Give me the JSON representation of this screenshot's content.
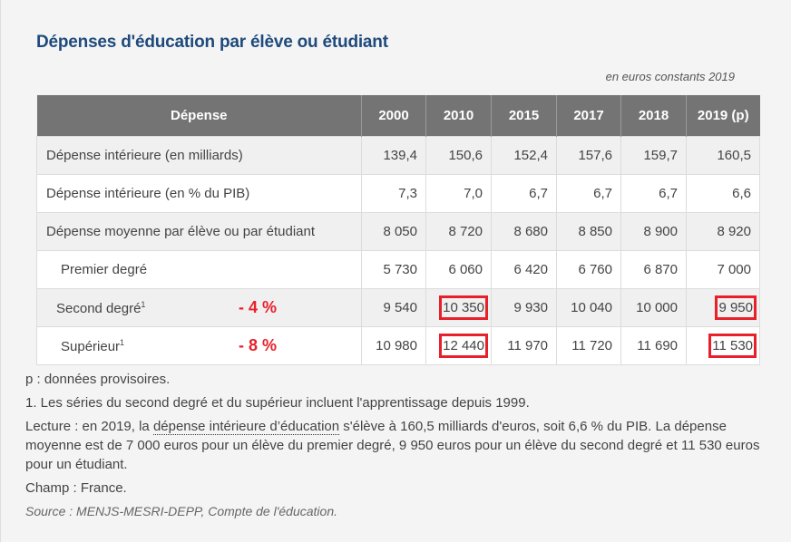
{
  "title": "Dépenses d'éducation par élève ou étudiant",
  "units": "en euros constants 2019",
  "table": {
    "headers": [
      "Dépense",
      "2000",
      "2010",
      "2015",
      "2017",
      "2018",
      "2019 (p)"
    ],
    "rows": [
      {
        "label": "Dépense intérieure (en milliards)",
        "values": [
          "139,4",
          "150,6",
          "152,4",
          "157,6",
          "159,7",
          "160,5"
        ]
      },
      {
        "label": "Dépense intérieure (en % du PIB)",
        "values": [
          "7,3",
          "7,0",
          "6,7",
          "6,7",
          "6,7",
          "6,6"
        ]
      },
      {
        "label": "Dépense moyenne par élève ou par étudiant",
        "values": [
          "8 050",
          "8 720",
          "8 680",
          "8 850",
          "8 900",
          "8 920"
        ]
      },
      {
        "label": "Premier degré",
        "values": [
          "5 730",
          "6 060",
          "6 420",
          "6 760",
          "6 870",
          "7 000"
        ]
      },
      {
        "label": "Second degré",
        "sup": "1",
        "delta": "- 4 %",
        "values": [
          "9 540",
          "10 350",
          "9 930",
          "10 040",
          "10 000",
          "9 950"
        ],
        "highlighted": [
          1,
          5
        ]
      },
      {
        "label": "Supérieur",
        "sup": "1",
        "delta": "- 8 %",
        "values": [
          "10 980",
          "12 440",
          "11 970",
          "11 720",
          "11 690",
          "11 530"
        ],
        "highlighted": [
          1,
          5
        ]
      }
    ]
  },
  "notes": {
    "provisional": "p : données provisoires.",
    "footnote": "1. Les séries du second degré et du supérieur incluent l'apprentissage depuis 1999.",
    "reading_prefix": "Lecture : en 2019, la ",
    "reading_link": "dépense intérieure d’éducation",
    "reading_suffix": " s'élève à 160,5 milliards d'euros, soit 6,6 % du PIB. La dépense moyenne est de 7 000 euros pour un élève du premier degré, 9 950 euros pour un élève du second degré et 11 530 euros pour un étudiant.",
    "scope": "Champ : France.",
    "source": "Source : MENJS-MESRI-DEPP, Compte de l'éducation."
  },
  "colors": {
    "title": "#1e4a7c",
    "header_bg": "#747474",
    "highlight": "#e8202a"
  }
}
